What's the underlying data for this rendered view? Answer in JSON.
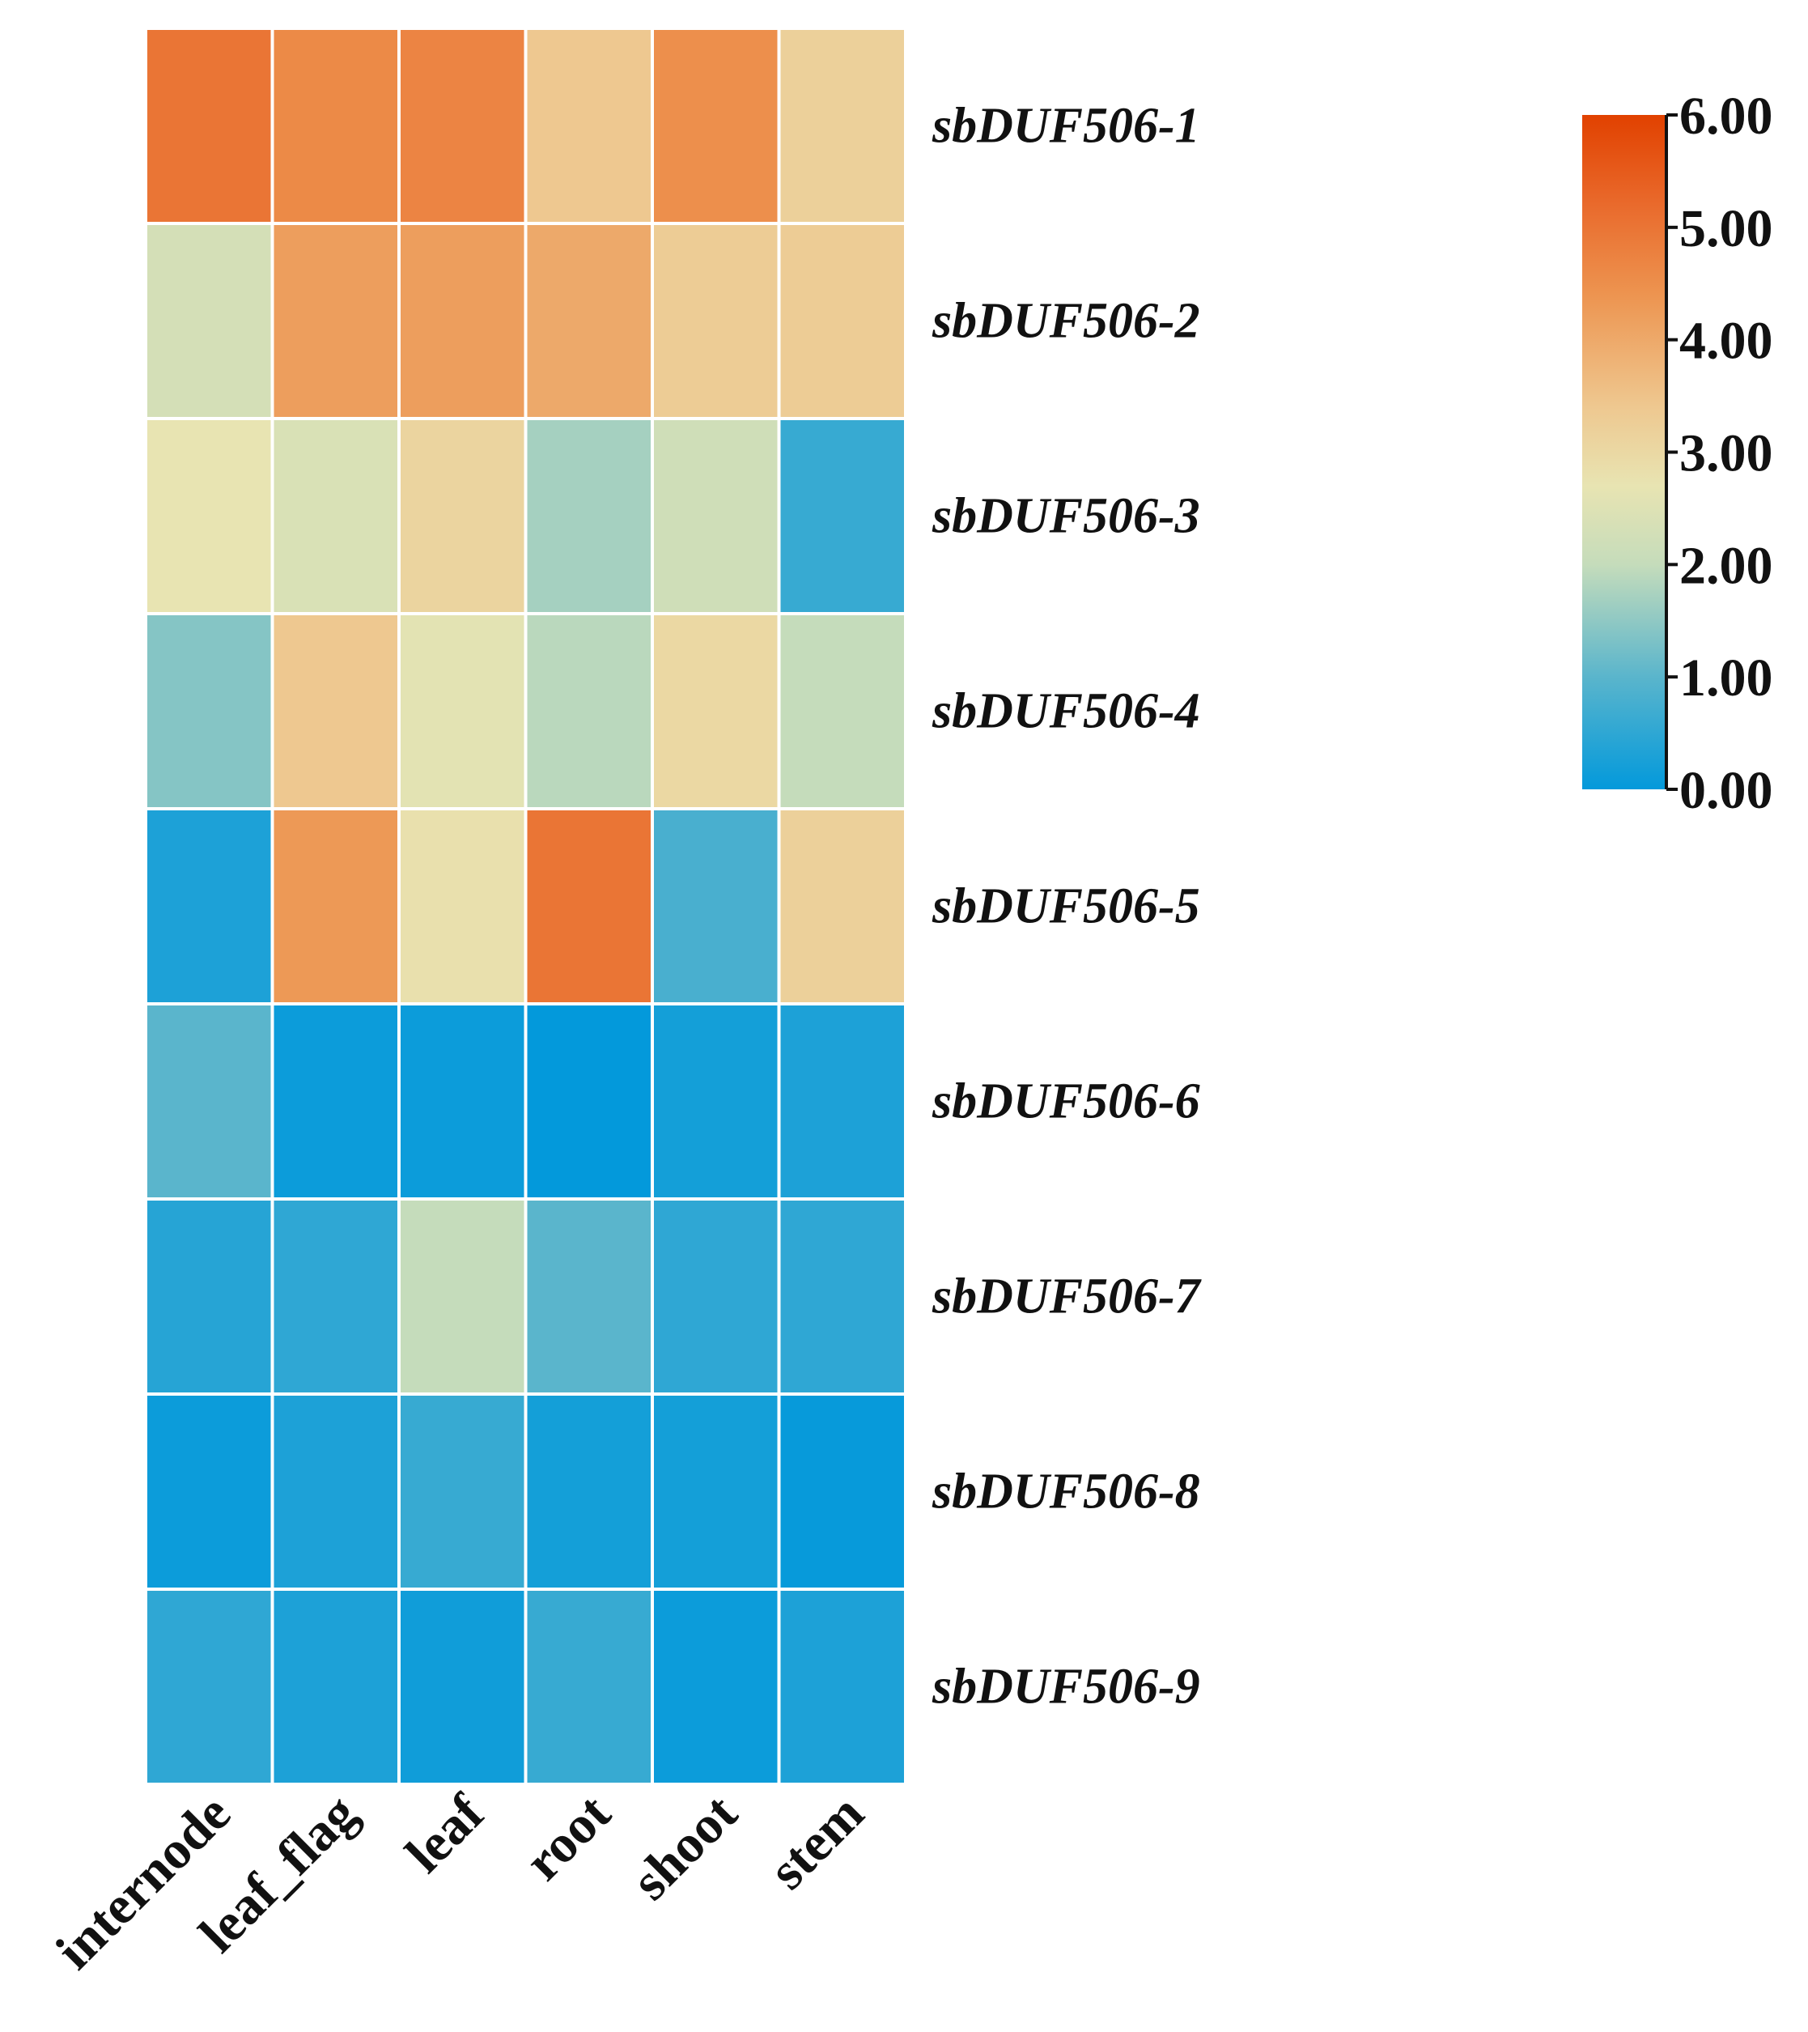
{
  "chart_data": {
    "type": "heatmap",
    "title": "",
    "xlabel": "",
    "ylabel": "",
    "columns": [
      "internode",
      "leaf_flag",
      "leaf",
      "root",
      "shoot",
      "stem"
    ],
    "rows": [
      "sbDUF506-1",
      "sbDUF506-2",
      "sbDUF506-3",
      "sbDUF506-4",
      "sbDUF506-5",
      "sbDUF506-6",
      "sbDUF506-7",
      "sbDUF506-8",
      "sbDUF506-9"
    ],
    "values": [
      [
        5.0,
        4.6,
        4.7,
        3.4,
        4.5,
        3.2
      ],
      [
        2.3,
        4.2,
        4.2,
        4.0,
        3.3,
        3.3
      ],
      [
        2.7,
        2.4,
        3.1,
        1.7,
        2.2,
        0.6
      ],
      [
        1.4,
        3.4,
        2.6,
        1.9,
        3.0,
        2.0
      ],
      [
        0.3,
        4.3,
        2.8,
        5.0,
        0.8,
        3.2
      ],
      [
        1.0,
        0.1,
        0.1,
        0.0,
        0.2,
        0.3
      ],
      [
        0.4,
        0.5,
        2.0,
        1.0,
        0.5,
        0.5
      ],
      [
        0.1,
        0.3,
        0.6,
        0.2,
        0.2,
        0.05
      ],
      [
        0.5,
        0.3,
        0.15,
        0.6,
        0.1,
        0.3
      ]
    ],
    "colorbar": {
      "min": 0,
      "max": 6,
      "ticks": [
        "0.00",
        "1.00",
        "2.00",
        "3.00",
        "4.00",
        "5.00",
        "6.00"
      ],
      "colors": [
        {
          "value": 0,
          "color": "#0399db"
        },
        {
          "value": 1,
          "color": "#5ab5cc"
        },
        {
          "value": 2,
          "color": "#c5dcbb"
        },
        {
          "value": 2.7,
          "color": "#e8e4b2"
        },
        {
          "value": 3.4,
          "color": "#eec890"
        },
        {
          "value": 4.4,
          "color": "#ed9450"
        },
        {
          "value": 5.2,
          "color": "#e96a2c"
        },
        {
          "value": 6,
          "color": "#e14100"
        }
      ]
    }
  }
}
